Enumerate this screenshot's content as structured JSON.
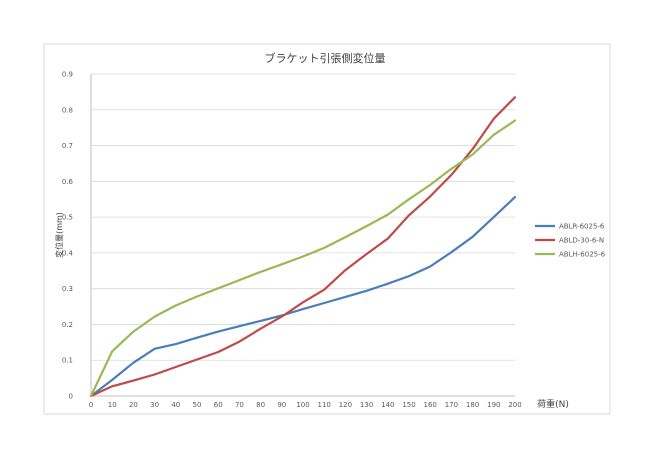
{
  "chart_data": {
    "type": "line",
    "title": "ブラケット引張側変位量",
    "xlabel": "荷重(N)",
    "ylabel": "変位量(mm)",
    "x": [
      0,
      10,
      20,
      30,
      40,
      50,
      60,
      70,
      80,
      90,
      100,
      110,
      120,
      130,
      140,
      150,
      160,
      170,
      180,
      190,
      200
    ],
    "xlim": [
      0,
      200
    ],
    "ylim": [
      0,
      0.9
    ],
    "x_ticks": [
      "0",
      "10",
      "20",
      "30",
      "40",
      "50",
      "60",
      "70",
      "80",
      "90",
      "100",
      "110",
      "120",
      "130",
      "140",
      "150",
      "160",
      "170",
      "180",
      "190",
      "200"
    ],
    "y_ticks": [
      "0",
      "0.1",
      "0.2",
      "0.3",
      "0.4",
      "0.5",
      "0.6",
      "0.7",
      "0.8",
      "0.9"
    ],
    "grid": true,
    "legend_position": "right",
    "series": [
      {
        "name": "ABLR-6025-6",
        "color": "#4a7ebb",
        "values": [
          0,
          0.045,
          0.093,
          0.132,
          0.145,
          0.163,
          0.18,
          0.195,
          0.21,
          0.225,
          0.243,
          0.26,
          0.277,
          0.294,
          0.314,
          0.335,
          0.362,
          0.402,
          0.445,
          0.5,
          0.556
        ]
      },
      {
        "name": "ABLD-30-6-N",
        "color": "#be4b48",
        "values": [
          0,
          0.027,
          0.043,
          0.06,
          0.081,
          0.102,
          0.123,
          0.152,
          0.188,
          0.222,
          0.262,
          0.297,
          0.352,
          0.397,
          0.44,
          0.505,
          0.558,
          0.618,
          0.69,
          0.775,
          0.835
        ]
      },
      {
        "name": "ABLH-6025-6",
        "color": "#98b954",
        "values": [
          0,
          0.125,
          0.18,
          0.222,
          0.253,
          0.278,
          0.301,
          0.324,
          0.347,
          0.368,
          0.39,
          0.414,
          0.444,
          0.475,
          0.507,
          0.55,
          0.59,
          0.635,
          0.675,
          0.73,
          0.77
        ]
      }
    ]
  }
}
